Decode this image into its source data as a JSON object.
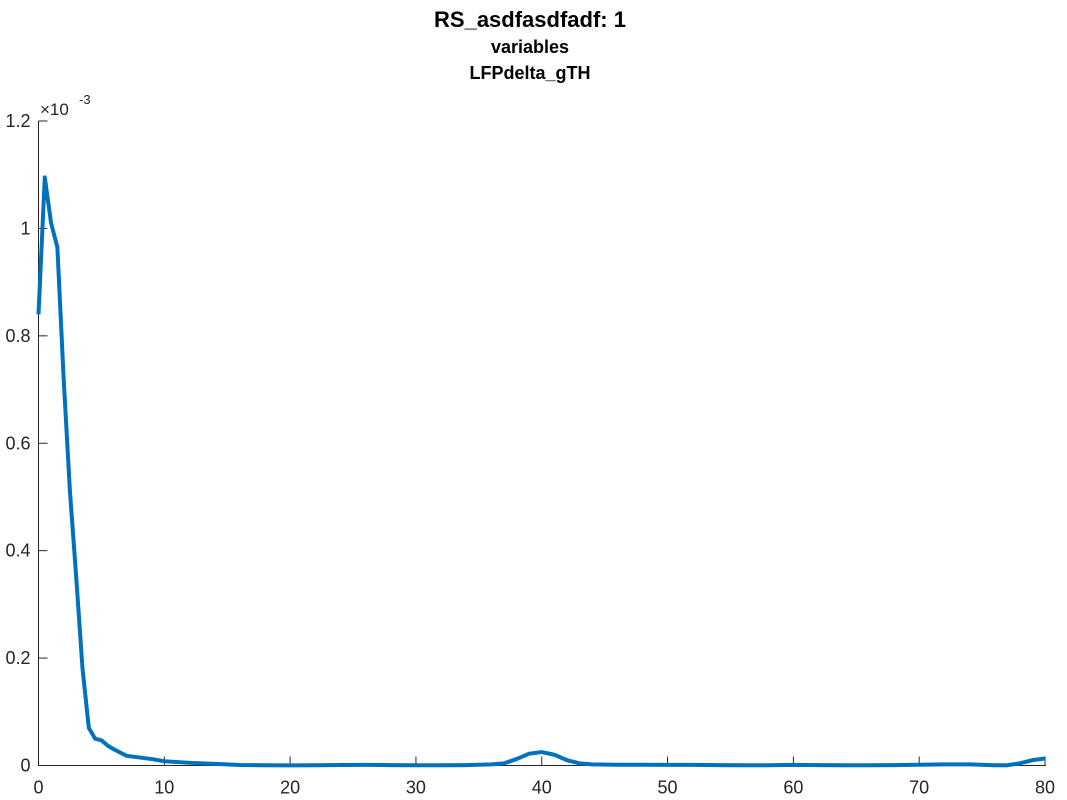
{
  "chart_data": {
    "type": "line",
    "title": "RS_asdfasdfadf: 1",
    "subtitle_lines": [
      "variables",
      "LFPdelta_gTH"
    ],
    "xlabel": "",
    "ylabel": "",
    "xlim": [
      0,
      80
    ],
    "ylim": [
      0,
      0.0012
    ],
    "x_ticks": [
      0,
      10,
      20,
      30,
      40,
      50,
      60,
      70,
      80
    ],
    "x_tick_labels": [
      "0",
      "10",
      "20",
      "30",
      "40",
      "50",
      "60",
      "70",
      "80"
    ],
    "y_ticks": [
      0,
      0.0002,
      0.0004,
      0.0006,
      0.0008,
      0.001,
      0.0012
    ],
    "y_tick_labels": [
      "0",
      "0.2",
      "0.4",
      "0.6",
      "0.8",
      "1",
      "1.2"
    ],
    "y_exponent_base": "×10",
    "y_exponent_power": "-3",
    "grid": false,
    "line_color": "#0072BD",
    "series": [
      {
        "x": [
          0,
          0.5,
          1,
          1.5,
          2,
          2.5,
          3,
          3.5,
          4,
          4.5,
          5,
          5.5,
          6,
          7,
          8,
          9,
          10,
          12,
          14,
          16,
          18,
          20,
          22,
          24,
          26,
          28,
          30,
          32,
          34,
          36,
          37,
          38,
          39,
          40,
          41,
          42,
          43,
          44,
          46,
          48,
          50,
          52,
          54,
          56,
          58,
          60,
          62,
          64,
          66,
          68,
          70,
          72,
          74,
          76,
          77,
          78,
          79,
          80
        ],
        "y": [
          0.00084,
          0.001095,
          0.00101,
          0.000965,
          0.00072,
          0.00051,
          0.00035,
          0.00018,
          7e-05,
          5e-05,
          4.7e-05,
          3.7e-05,
          3e-05,
          1.8e-05,
          1.5e-05,
          1.2e-05,
          8e-06,
          5e-06,
          3e-06,
          1e-06,
          5e-07,
          3e-07,
          5e-07,
          1e-06,
          1.2e-06,
          8e-07,
          5e-07,
          5e-07,
          8e-07,
          2e-06,
          4e-06,
          1.2e-05,
          2.2e-05,
          2.5e-05,
          2e-05,
          1e-05,
          4e-06,
          2e-06,
          1.5e-06,
          1.5e-06,
          1.2e-06,
          1.2e-06,
          8e-07,
          5e-07,
          5e-07,
          1.2e-06,
          8e-07,
          5e-07,
          5e-07,
          8e-07,
          1.5e-06,
          2e-06,
          2e-06,
          5e-07,
          5e-07,
          4e-06,
          1e-05,
          1.3e-05
        ]
      }
    ]
  }
}
